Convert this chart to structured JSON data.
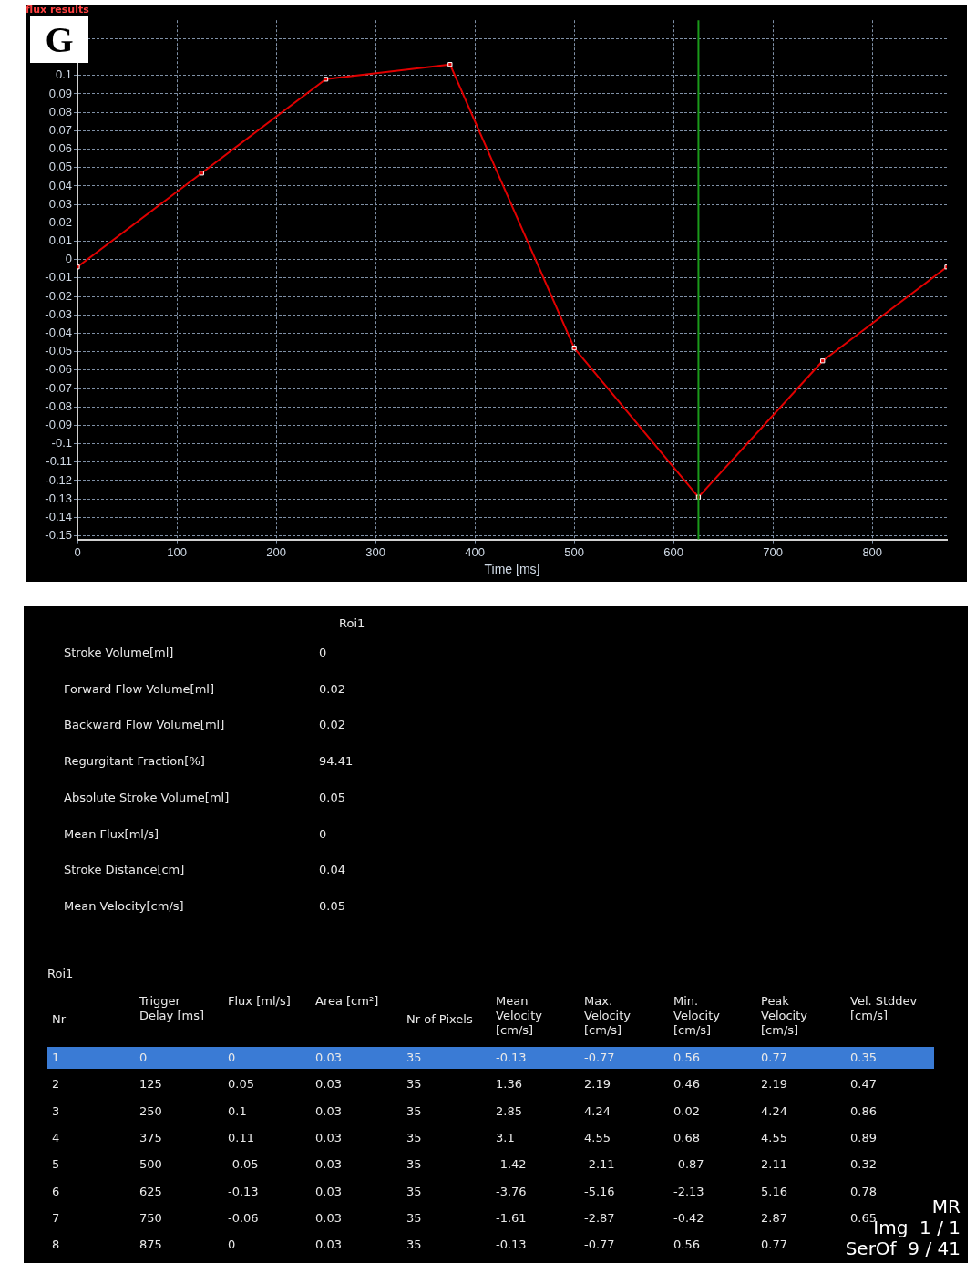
{
  "chart_data": [
    {
      "type": "line",
      "title": "flux results",
      "xlabel": "Time [ms]",
      "annotations": [
        "G"
      ],
      "x": [
        0,
        125,
        250,
        375,
        500,
        625,
        750,
        875
      ],
      "series": [
        {
          "color": "#e00000",
          "values": [
            -0.004,
            0.047,
            0.098,
            0.106,
            -0.048,
            -0.129,
            -0.055,
            -0.004
          ]
        }
      ],
      "xlim": [
        0,
        875
      ],
      "xticks": [
        0,
        100,
        200,
        300,
        400,
        500,
        600,
        700,
        800
      ],
      "ylim": [
        -0.152,
        0.13
      ],
      "yticks": [
        -0.15,
        -0.14,
        -0.13,
        -0.12,
        -0.11,
        -0.1,
        -0.09,
        -0.08,
        -0.07,
        -0.06,
        -0.05,
        -0.04,
        -0.03,
        -0.02,
        -0.01,
        0,
        0.01,
        0.02,
        0.03,
        0.04,
        0.05,
        0.06,
        0.07,
        0.08,
        0.09,
        0.1,
        {
          "value": 0.11,
          "label": null
        },
        {
          "value": 0.12,
          "label": null
        }
      ],
      "ref_lines": [
        {
          "axis": "x",
          "value": 625,
          "color": "#1a9a1a"
        }
      ],
      "grid": true,
      "legend": false,
      "marker": "square",
      "line_style": "solid"
    },
    {
      "type": "heatmap",
      "data_labels": true,
      "categories": [
        "Roi1"
      ],
      "y_categories": [
        "Stroke Volume[ml]",
        "Forward Flow Volume[ml]",
        "Backward Flow Volume[ml]",
        "Regurgitant Fraction[%]",
        "Absolute Stroke Volume[ml]",
        "Mean Flux[ml/s]",
        "Stroke Distance[cm]",
        "Mean Velocity[cm/s]"
      ],
      "cells": [
        [
          0
        ],
        [
          0.02
        ],
        [
          0.02
        ],
        [
          94.41
        ],
        [
          0.05
        ],
        [
          0
        ],
        [
          0.04
        ],
        [
          0.05
        ]
      ]
    },
    {
      "type": "heatmap",
      "data_labels": true,
      "title": "Roi1",
      "ylabel": "Nr",
      "categories": [
        "Trigger Delay [ms]",
        "Flux [ml/s]",
        "Area [cm²]",
        "Nr of Pixels",
        "Mean Velocity [cm/s]",
        "Max. Velocity [cm/s]",
        "Min. Velocity [cm/s]",
        "Peak Velocity [cm/s]",
        "Vel. Stddev [cm/s]"
      ],
      "y_categories": [
        "1",
        "2",
        "3",
        "4",
        "5",
        "6",
        "7",
        "8"
      ],
      "cells": [
        [
          0,
          0,
          0.03,
          35,
          -0.13,
          -0.77,
          0.56,
          0.77,
          0.35
        ],
        [
          125,
          0.05,
          0.03,
          35,
          1.36,
          2.19,
          0.46,
          2.19,
          0.47
        ],
        [
          250,
          0.1,
          0.03,
          35,
          2.85,
          4.24,
          0.02,
          4.24,
          0.86
        ],
        [
          375,
          0.11,
          0.03,
          35,
          3.1,
          4.55,
          0.68,
          4.55,
          0.89
        ],
        [
          500,
          -0.05,
          0.03,
          35,
          -1.42,
          -2.11,
          -0.87,
          2.11,
          0.32
        ],
        [
          625,
          -0.13,
          0.03,
          35,
          -3.76,
          -5.16,
          -2.13,
          5.16,
          0.78
        ],
        [
          750,
          -0.06,
          0.03,
          35,
          -1.61,
          -2.87,
          -0.42,
          2.87,
          0.65
        ],
        [
          875,
          0,
          0.03,
          35,
          -0.13,
          -0.77,
          0.56,
          0.77,
          null
        ]
      ],
      "annotations": [
        "MR",
        "Img  1 / 1",
        "SerOf  9 / 41"
      ]
    }
  ]
}
